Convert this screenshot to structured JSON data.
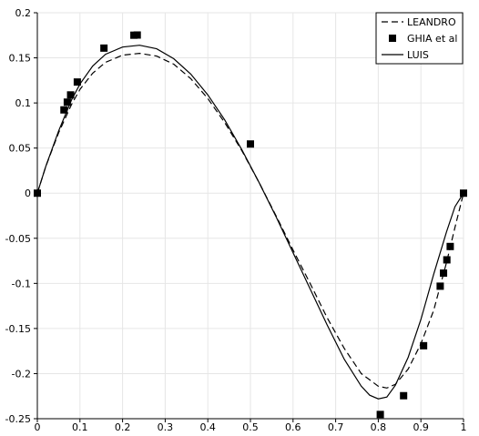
{
  "chart_data": {
    "type": "line",
    "title": "",
    "xlabel": "",
    "ylabel": "",
    "xlim": [
      0,
      1
    ],
    "ylim": [
      -0.25,
      0.2
    ],
    "xticks": [
      "0",
      "0.1",
      "0.2",
      "0.3",
      "0.4",
      "0.5",
      "0.6",
      "0.7",
      "0.8",
      "0.9",
      "1"
    ],
    "yticks": [
      "0.2",
      "0.15",
      "0.1",
      "0.05",
      "0",
      "-0.05",
      "-0.1",
      "-0.15",
      "-0.2",
      "-0.25"
    ],
    "grid": true,
    "legend_position": "top-right",
    "series": [
      {
        "name": "LEANDRO",
        "style": "dashed",
        "color": "#000000",
        "x": [
          0,
          0.02,
          0.05,
          0.08,
          0.1,
          0.13,
          0.16,
          0.2,
          0.24,
          0.28,
          0.32,
          0.36,
          0.4,
          0.44,
          0.48,
          0.52,
          0.56,
          0.6,
          0.64,
          0.68,
          0.72,
          0.76,
          0.8,
          0.82,
          0.84,
          0.87,
          0.9,
          0.93,
          0.96,
          0.98,
          1.0
        ],
        "y": [
          0,
          0.03,
          0.067,
          0.098,
          0.115,
          0.133,
          0.145,
          0.153,
          0.155,
          0.152,
          0.143,
          0.127,
          0.105,
          0.078,
          0.047,
          0.012,
          -0.025,
          -0.063,
          -0.1,
          -0.138,
          -0.172,
          -0.2,
          -0.214,
          -0.216,
          -0.212,
          -0.195,
          -0.167,
          -0.13,
          -0.077,
          -0.038,
          0
        ]
      },
      {
        "name": "GHIA et al",
        "style": "markers",
        "color": "#000000",
        "x": [
          0,
          0.0625,
          0.0703,
          0.0781,
          0.0938,
          0.1563,
          0.2266,
          0.2344,
          0.5,
          0.8047,
          0.8594,
          0.9063,
          0.9453,
          0.9531,
          0.9609,
          0.9688,
          1.0
        ],
        "y": [
          0,
          0.0923,
          0.1009,
          0.1089,
          0.1232,
          0.1608,
          0.1751,
          0.1753,
          0.0545,
          -0.2453,
          -0.2245,
          -0.1691,
          -0.1031,
          -0.0886,
          -0.0739,
          -0.0591,
          0
        ]
      },
      {
        "name": "LUIS",
        "style": "solid",
        "color": "#000000",
        "x": [
          0,
          0.02,
          0.05,
          0.08,
          0.1,
          0.13,
          0.16,
          0.2,
          0.24,
          0.28,
          0.32,
          0.36,
          0.4,
          0.44,
          0.48,
          0.52,
          0.56,
          0.6,
          0.64,
          0.68,
          0.72,
          0.76,
          0.78,
          0.8,
          0.82,
          0.84,
          0.87,
          0.9,
          0.93,
          0.96,
          0.98,
          1.0
        ],
        "y": [
          0,
          0.03,
          0.069,
          0.103,
          0.121,
          0.141,
          0.154,
          0.162,
          0.164,
          0.16,
          0.149,
          0.132,
          0.109,
          0.081,
          0.048,
          0.012,
          -0.026,
          -0.066,
          -0.106,
          -0.146,
          -0.184,
          -0.214,
          -0.224,
          -0.228,
          -0.226,
          -0.213,
          -0.182,
          -0.14,
          -0.09,
          -0.043,
          -0.015,
          0
        ]
      }
    ]
  }
}
